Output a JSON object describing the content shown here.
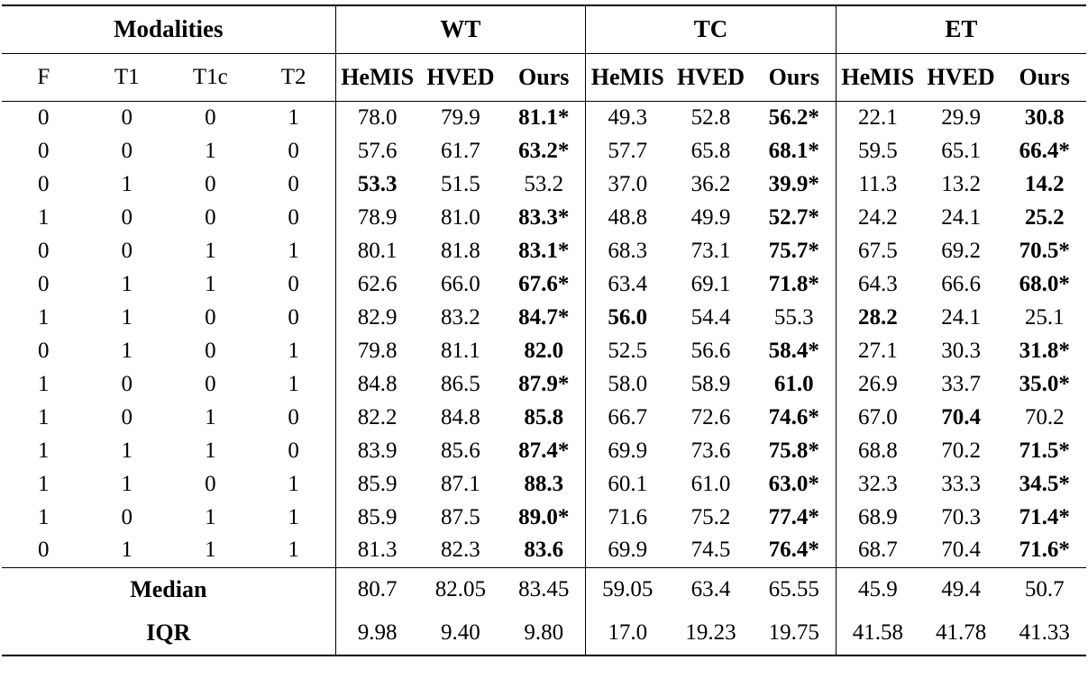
{
  "table": {
    "group_headers": [
      {
        "label": "Modalities"
      },
      {
        "label": "WT"
      },
      {
        "label": "TC"
      },
      {
        "label": "ET"
      }
    ],
    "modality_columns": [
      "F",
      "T1",
      "T1c",
      "T2"
    ],
    "method_columns": [
      "HeMIS",
      "HVED",
      "Ours"
    ],
    "rows": [
      {
        "mods": [
          "0",
          "0",
          "0",
          "1"
        ],
        "cells": [
          {
            "t": "78.0",
            "b": false
          },
          {
            "t": "79.9",
            "b": false
          },
          {
            "t": "81.1*",
            "b": true
          },
          {
            "t": "49.3",
            "b": false
          },
          {
            "t": "52.8",
            "b": false
          },
          {
            "t": "56.2*",
            "b": true
          },
          {
            "t": "22.1",
            "b": false
          },
          {
            "t": "29.9",
            "b": false
          },
          {
            "t": "30.8",
            "b": true
          }
        ]
      },
      {
        "mods": [
          "0",
          "0",
          "1",
          "0"
        ],
        "cells": [
          {
            "t": "57.6",
            "b": false
          },
          {
            "t": "61.7",
            "b": false
          },
          {
            "t": "63.2*",
            "b": true
          },
          {
            "t": "57.7",
            "b": false
          },
          {
            "t": "65.8",
            "b": false
          },
          {
            "t": "68.1*",
            "b": true
          },
          {
            "t": "59.5",
            "b": false
          },
          {
            "t": "65.1",
            "b": false
          },
          {
            "t": "66.4*",
            "b": true
          }
        ]
      },
      {
        "mods": [
          "0",
          "1",
          "0",
          "0"
        ],
        "cells": [
          {
            "t": "53.3",
            "b": true
          },
          {
            "t": "51.5",
            "b": false
          },
          {
            "t": "53.2",
            "b": false
          },
          {
            "t": "37.0",
            "b": false
          },
          {
            "t": "36.2",
            "b": false
          },
          {
            "t": "39.9*",
            "b": true
          },
          {
            "t": "11.3",
            "b": false
          },
          {
            "t": "13.2",
            "b": false
          },
          {
            "t": "14.2",
            "b": true
          }
        ]
      },
      {
        "mods": [
          "1",
          "0",
          "0",
          "0"
        ],
        "cells": [
          {
            "t": "78.9",
            "b": false
          },
          {
            "t": "81.0",
            "b": false
          },
          {
            "t": "83.3*",
            "b": true
          },
          {
            "t": "48.8",
            "b": false
          },
          {
            "t": "49.9",
            "b": false
          },
          {
            "t": "52.7*",
            "b": true
          },
          {
            "t": "24.2",
            "b": false
          },
          {
            "t": "24.1",
            "b": false
          },
          {
            "t": "25.2",
            "b": true
          }
        ]
      },
      {
        "mods": [
          "0",
          "0",
          "1",
          "1"
        ],
        "cells": [
          {
            "t": "80.1",
            "b": false
          },
          {
            "t": "81.8",
            "b": false
          },
          {
            "t": "83.1*",
            "b": true
          },
          {
            "t": "68.3",
            "b": false
          },
          {
            "t": "73.1",
            "b": false
          },
          {
            "t": "75.7*",
            "b": true
          },
          {
            "t": "67.5",
            "b": false
          },
          {
            "t": "69.2",
            "b": false
          },
          {
            "t": "70.5*",
            "b": true
          }
        ]
      },
      {
        "mods": [
          "0",
          "1",
          "1",
          "0"
        ],
        "cells": [
          {
            "t": "62.6",
            "b": false
          },
          {
            "t": "66.0",
            "b": false
          },
          {
            "t": "67.6*",
            "b": true
          },
          {
            "t": "63.4",
            "b": false
          },
          {
            "t": "69.1",
            "b": false
          },
          {
            "t": "71.8*",
            "b": true
          },
          {
            "t": "64.3",
            "b": false
          },
          {
            "t": "66.6",
            "b": false
          },
          {
            "t": "68.0*",
            "b": true
          }
        ]
      },
      {
        "mods": [
          "1",
          "1",
          "0",
          "0"
        ],
        "cells": [
          {
            "t": "82.9",
            "b": false
          },
          {
            "t": "83.2",
            "b": false
          },
          {
            "t": "84.7*",
            "b": true
          },
          {
            "t": "56.0",
            "b": true
          },
          {
            "t": "54.4",
            "b": false
          },
          {
            "t": "55.3",
            "b": false
          },
          {
            "t": "28.2",
            "b": true
          },
          {
            "t": "24.1",
            "b": false
          },
          {
            "t": "25.1",
            "b": false
          }
        ]
      },
      {
        "mods": [
          "0",
          "1",
          "0",
          "1"
        ],
        "cells": [
          {
            "t": "79.8",
            "b": false
          },
          {
            "t": "81.1",
            "b": false
          },
          {
            "t": "82.0",
            "b": true
          },
          {
            "t": "52.5",
            "b": false
          },
          {
            "t": "56.6",
            "b": false
          },
          {
            "t": "58.4*",
            "b": true
          },
          {
            "t": "27.1",
            "b": false
          },
          {
            "t": "30.3",
            "b": false
          },
          {
            "t": "31.8*",
            "b": true
          }
        ]
      },
      {
        "mods": [
          "1",
          "0",
          "0",
          "1"
        ],
        "cells": [
          {
            "t": "84.8",
            "b": false
          },
          {
            "t": "86.5",
            "b": false
          },
          {
            "t": "87.9*",
            "b": true
          },
          {
            "t": "58.0",
            "b": false
          },
          {
            "t": "58.9",
            "b": false
          },
          {
            "t": "61.0",
            "b": true
          },
          {
            "t": "26.9",
            "b": false
          },
          {
            "t": "33.7",
            "b": false
          },
          {
            "t": "35.0*",
            "b": true
          }
        ]
      },
      {
        "mods": [
          "1",
          "0",
          "1",
          "0"
        ],
        "cells": [
          {
            "t": "82.2",
            "b": false
          },
          {
            "t": "84.8",
            "b": false
          },
          {
            "t": "85.8",
            "b": true
          },
          {
            "t": "66.7",
            "b": false
          },
          {
            "t": "72.6",
            "b": false
          },
          {
            "t": "74.6*",
            "b": true
          },
          {
            "t": "67.0",
            "b": false
          },
          {
            "t": "70.4",
            "b": true
          },
          {
            "t": "70.2",
            "b": false
          }
        ]
      },
      {
        "mods": [
          "1",
          "1",
          "1",
          "0"
        ],
        "cells": [
          {
            "t": "83.9",
            "b": false
          },
          {
            "t": "85.6",
            "b": false
          },
          {
            "t": "87.4*",
            "b": true
          },
          {
            "t": "69.9",
            "b": false
          },
          {
            "t": "73.6",
            "b": false
          },
          {
            "t": "75.8*",
            "b": true
          },
          {
            "t": "68.8",
            "b": false
          },
          {
            "t": "70.2",
            "b": false
          },
          {
            "t": "71.5*",
            "b": true
          }
        ]
      },
      {
        "mods": [
          "1",
          "1",
          "0",
          "1"
        ],
        "cells": [
          {
            "t": "85.9",
            "b": false
          },
          {
            "t": "87.1",
            "b": false
          },
          {
            "t": "88.3",
            "b": true
          },
          {
            "t": "60.1",
            "b": false
          },
          {
            "t": "61.0",
            "b": false
          },
          {
            "t": "63.0*",
            "b": true
          },
          {
            "t": "32.3",
            "b": false
          },
          {
            "t": "33.3",
            "b": false
          },
          {
            "t": "34.5*",
            "b": true
          }
        ]
      },
      {
        "mods": [
          "1",
          "0",
          "1",
          "1"
        ],
        "cells": [
          {
            "t": "85.9",
            "b": false
          },
          {
            "t": "87.5",
            "b": false
          },
          {
            "t": "89.0*",
            "b": true
          },
          {
            "t": "71.6",
            "b": false
          },
          {
            "t": "75.2",
            "b": false
          },
          {
            "t": "77.4*",
            "b": true
          },
          {
            "t": "68.9",
            "b": false
          },
          {
            "t": "70.3",
            "b": false
          },
          {
            "t": "71.4*",
            "b": true
          }
        ]
      },
      {
        "mods": [
          "0",
          "1",
          "1",
          "1"
        ],
        "cells": [
          {
            "t": "81.3",
            "b": false
          },
          {
            "t": "82.3",
            "b": false
          },
          {
            "t": "83.6",
            "b": true
          },
          {
            "t": "69.9",
            "b": false
          },
          {
            "t": "74.5",
            "b": false
          },
          {
            "t": "76.4*",
            "b": true
          },
          {
            "t": "68.7",
            "b": false
          },
          {
            "t": "70.4",
            "b": false
          },
          {
            "t": "71.6*",
            "b": true
          }
        ]
      }
    ],
    "summary_rows": [
      {
        "label": "Median",
        "cells": [
          "80.7",
          "82.05",
          "83.45",
          "59.05",
          "63.4",
          "65.55",
          "45.9",
          "49.4",
          "50.7"
        ]
      },
      {
        "label": "IQR",
        "cells": [
          "9.98",
          "9.40",
          "9.80",
          "17.0",
          "19.23",
          "19.75",
          "41.58",
          "41.78",
          "41.33"
        ]
      }
    ]
  }
}
